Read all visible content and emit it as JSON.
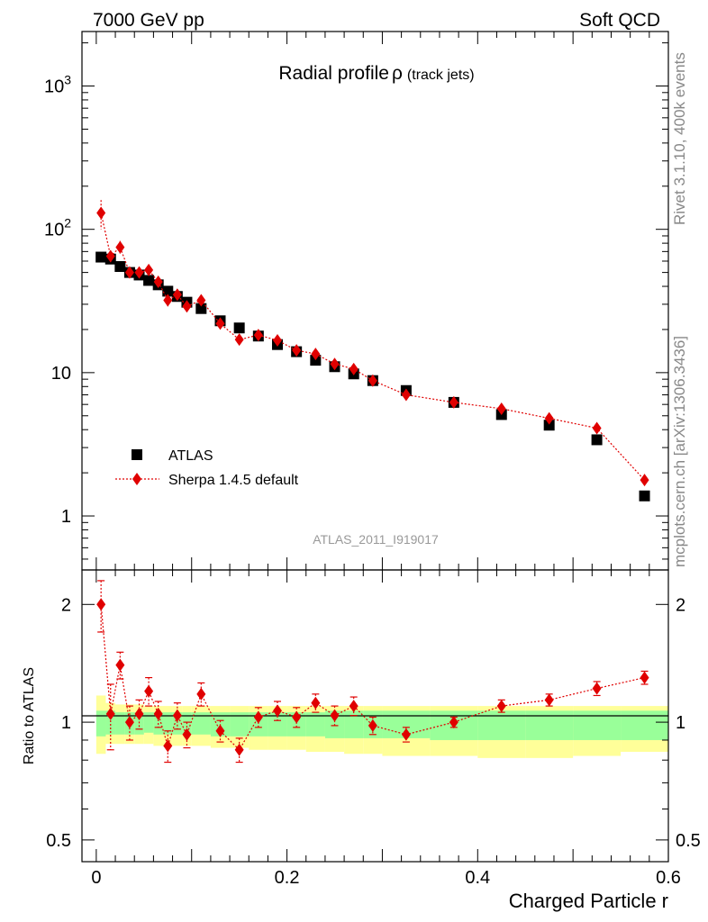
{
  "header": {
    "left": "7000 GeV pp",
    "right": "Soft QCD"
  },
  "side_labels": {
    "rivet": "Rivet 3.1.10,  400k events",
    "mcplots": "mcplots.cern.ch [arXiv:1306.3436]"
  },
  "chart_data": [
    {
      "type": "scatter",
      "title": "Radial profile",
      "title_symbol": "ρ",
      "title_suffix": "(track jets)",
      "xlabel": "Charged Particle r",
      "ylabel": "",
      "yscale": "log",
      "xlim": [
        -0.015,
        0.6
      ],
      "ylim": [
        0.42,
        2400
      ],
      "y_ticks": [
        {
          "value": 1000,
          "base": "10",
          "exp": "3"
        },
        {
          "value": 100,
          "base": "10",
          "exp": "2"
        },
        {
          "value": 10,
          "base": "10",
          "exp": ""
        },
        {
          "value": 1,
          "base": "1",
          "exp": ""
        }
      ],
      "reference_label": "ATLAS_2011_I919017",
      "legend_position": "lower-left",
      "x": [
        0.005,
        0.015,
        0.025,
        0.035,
        0.045,
        0.055,
        0.065,
        0.075,
        0.085,
        0.095,
        0.11,
        0.13,
        0.15,
        0.17,
        0.19,
        0.21,
        0.23,
        0.25,
        0.27,
        0.29,
        0.325,
        0.375,
        0.425,
        0.475,
        0.525,
        0.575
      ],
      "series": [
        {
          "name": "ATLAS",
          "color": "#000000",
          "marker": "square",
          "values": [
            64,
            62,
            55,
            50,
            48,
            44,
            41,
            37,
            34,
            31,
            28,
            23,
            20.5,
            18,
            15.7,
            14,
            12.2,
            11,
            9.8,
            8.8,
            7.5,
            6.2,
            5.1,
            4.3,
            3.4,
            1.38
          ]
        },
        {
          "name": "Sherpa 1.4.5 default",
          "color": "#e00000",
          "marker": "diamond",
          "line": "dotted",
          "values": [
            130,
            65,
            75,
            50,
            50,
            52,
            43,
            32,
            35,
            29,
            32,
            22,
            17,
            18.3,
            16.8,
            14.3,
            13.5,
            11.5,
            10.6,
            8.8,
            7,
            6.2,
            5.6,
            4.8,
            4.1,
            1.78
          ],
          "errors": [
            30,
            6,
            8,
            4,
            4,
            4,
            3,
            3,
            2.5,
            2,
            2,
            1.5,
            1.4,
            1.1,
            1,
            0.9,
            0.8,
            0.7,
            0.7,
            0.6,
            0.4,
            0.3,
            0.3,
            0.2,
            0.2,
            0.1
          ]
        }
      ]
    },
    {
      "type": "scatter",
      "title": "",
      "xlabel": "Charged Particle r",
      "ylabel": "Ratio to ATLAS",
      "yscale": "log",
      "xlim": [
        -0.015,
        0.6
      ],
      "ylim": [
        0.44,
        2.45
      ],
      "y_ticks": [
        {
          "value": 2,
          "label": "2"
        },
        {
          "value": 1,
          "label": "1"
        },
        {
          "value": 0.5,
          "label": "0.5"
        }
      ],
      "x_ticks": [
        {
          "value": 0,
          "label": "0"
        },
        {
          "value": 0.2,
          "label": "0.2"
        },
        {
          "value": 0.4,
          "label": "0.4"
        },
        {
          "value": 0.6,
          "label": "0.6"
        }
      ],
      "x_edges": [
        0,
        0.01,
        0.02,
        0.03,
        0.04,
        0.05,
        0.06,
        0.07,
        0.08,
        0.09,
        0.1,
        0.12,
        0.14,
        0.16,
        0.18,
        0.2,
        0.22,
        0.24,
        0.26,
        0.28,
        0.3,
        0.35,
        0.4,
        0.45,
        0.5,
        0.55,
        0.6
      ],
      "bands": [
        {
          "name": "stat uncertainty",
          "color": "#99ff99",
          "lo": [
            0.92,
            0.93,
            0.93,
            0.93,
            0.93,
            0.94,
            0.93,
            0.93,
            0.93,
            0.93,
            0.93,
            0.92,
            0.92,
            0.92,
            0.92,
            0.92,
            0.92,
            0.91,
            0.91,
            0.91,
            0.91,
            0.9,
            0.9,
            0.9,
            0.9,
            0.9
          ],
          "hi": [
            1.07,
            1.07,
            1.06,
            1.06,
            1.06,
            1.06,
            1.06,
            1.06,
            1.06,
            1.06,
            1.06,
            1.06,
            1.06,
            1.06,
            1.06,
            1.06,
            1.06,
            1.07,
            1.07,
            1.07,
            1.07,
            1.07,
            1.07,
            1.07,
            1.07,
            1.07
          ]
        },
        {
          "name": "total uncertainty",
          "color": "#ffff99",
          "lo": [
            0.83,
            0.88,
            0.88,
            0.88,
            0.88,
            0.88,
            0.87,
            0.87,
            0.87,
            0.87,
            0.87,
            0.86,
            0.86,
            0.85,
            0.85,
            0.85,
            0.84,
            0.84,
            0.83,
            0.83,
            0.82,
            0.82,
            0.81,
            0.81,
            0.82,
            0.84
          ],
          "hi": [
            1.17,
            1.12,
            1.11,
            1.11,
            1.11,
            1.1,
            1.1,
            1.1,
            1.1,
            1.1,
            1.1,
            1.1,
            1.1,
            1.1,
            1.1,
            1.1,
            1.1,
            1.1,
            1.1,
            1.1,
            1.1,
            1.1,
            1.1,
            1.1,
            1.1,
            1.1
          ]
        }
      ],
      "x": [
        0.005,
        0.015,
        0.025,
        0.035,
        0.045,
        0.055,
        0.065,
        0.075,
        0.085,
        0.095,
        0.11,
        0.13,
        0.15,
        0.17,
        0.19,
        0.21,
        0.23,
        0.25,
        0.27,
        0.29,
        0.325,
        0.375,
        0.425,
        0.475,
        0.525,
        0.575
      ],
      "series": [
        {
          "name": "Sherpa 1.4.5 default / ATLAS",
          "color": "#e00000",
          "marker": "diamond",
          "line": "dotted",
          "values": [
            2.0,
            1.05,
            1.4,
            1.0,
            1.05,
            1.2,
            1.05,
            0.87,
            1.04,
            0.93,
            1.18,
            0.95,
            0.85,
            1.03,
            1.07,
            1.03,
            1.12,
            1.04,
            1.1,
            0.98,
            0.93,
            1.0,
            1.1,
            1.14,
            1.22,
            1.3
          ],
          "err_lo": [
            1.7,
            0.85,
            1.29,
            0.9,
            0.96,
            1.1,
            0.97,
            0.79,
            0.96,
            0.86,
            1.1,
            0.89,
            0.79,
            0.97,
            1.01,
            0.97,
            1.06,
            0.98,
            1.04,
            0.93,
            0.89,
            0.97,
            1.06,
            1.1,
            1.17,
            1.25
          ],
          "err_hi": [
            2.3,
            1.25,
            1.51,
            1.1,
            1.14,
            1.3,
            1.13,
            0.95,
            1.12,
            1.0,
            1.26,
            1.01,
            0.91,
            1.09,
            1.13,
            1.09,
            1.18,
            1.1,
            1.16,
            1.03,
            0.97,
            1.03,
            1.14,
            1.18,
            1.27,
            1.35
          ]
        }
      ]
    }
  ]
}
